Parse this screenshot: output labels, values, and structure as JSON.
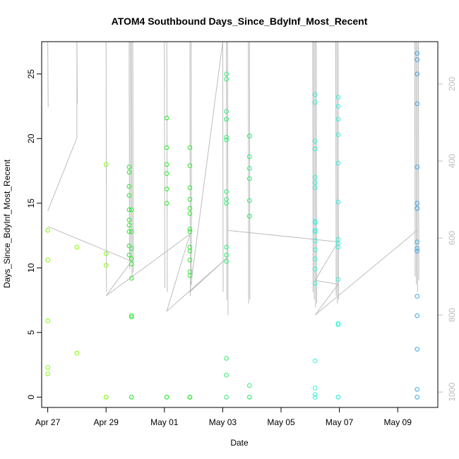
{
  "chart_data": {
    "type": "scatter",
    "title": "ATOM4 Southbound Days_Since_BdyInf_Most_Recent",
    "xlabel": "Date",
    "ylabel": "Days_Since_BdyInf_Most_Recent",
    "x_axis": {
      "type": "date",
      "range": [
        "2023-04-26T19:00",
        "2023-05-10T09:00"
      ],
      "ticks": [
        {
          "date": "2023-04-27",
          "label": "Apr 27"
        },
        {
          "date": "2023-04-29",
          "label": "Apr 29"
        },
        {
          "date": "2023-05-01",
          "label": "May 01"
        },
        {
          "date": "2023-05-03",
          "label": "May 03"
        },
        {
          "date": "2023-05-05",
          "label": "May 05"
        },
        {
          "date": "2023-05-07",
          "label": "May 07"
        },
        {
          "date": "2023-05-09",
          "label": "May 09"
        }
      ]
    },
    "y_left": {
      "range": [
        -0.8,
        27.5
      ],
      "ticks": [
        0,
        5,
        10,
        15,
        20,
        25
      ]
    },
    "y_right": {
      "range": [
        1040,
        90
      ],
      "ticks": [
        200,
        400,
        600,
        800,
        1000
      ],
      "color": "#bdbdbd"
    },
    "grid": false,
    "legend": "none",
    "line_color": "#bdbdbd",
    "series": [
      {
        "color": "#7fff00",
        "points": [
          [
            "2023-04-27T00:00",
            12.9
          ],
          [
            "2023-04-27T00:00",
            10.6
          ],
          [
            "2023-04-27T00:00",
            5.9
          ],
          [
            "2023-04-27T00:00",
            2.3
          ],
          [
            "2023-04-27T00:00",
            1.8
          ],
          [
            "2023-04-28T00:00",
            11.6
          ],
          [
            "2023-04-28T00:00",
            3.4
          ],
          [
            "2023-04-29T00:00",
            18.0
          ],
          [
            "2023-04-29T00:00",
            11.1
          ],
          [
            "2023-04-29T00:00",
            10.2
          ],
          [
            "2023-04-29T00:00",
            0.0
          ],
          [
            "2023-04-29T00:00",
            0.0
          ]
        ]
      },
      {
        "color": "#2ee82e",
        "points": [
          [
            "2023-04-29T19:00",
            17.8
          ],
          [
            "2023-04-29T19:00",
            17.4
          ],
          [
            "2023-04-29T19:00",
            16.3
          ],
          [
            "2023-04-29T19:00",
            15.6
          ],
          [
            "2023-04-29T19:00",
            14.5
          ],
          [
            "2023-04-29T19:00",
            13.7
          ],
          [
            "2023-04-29T19:00",
            13.3
          ],
          [
            "2023-04-29T19:00",
            12.8
          ],
          [
            "2023-04-29T19:00",
            11.7
          ],
          [
            "2023-04-29T19:00",
            11.0
          ],
          [
            "2023-04-29T21:00",
            14.5
          ],
          [
            "2023-04-29T21:00",
            12.8
          ],
          [
            "2023-04-29T21:00",
            11.5
          ],
          [
            "2023-04-29T21:00",
            10.7
          ],
          [
            "2023-04-29T21:00",
            10.3
          ],
          [
            "2023-04-29T21:00",
            9.2
          ],
          [
            "2023-04-29T21:00",
            6.3
          ],
          [
            "2023-04-29T21:00",
            6.2
          ],
          [
            "2023-04-29T21:00",
            0.0
          ],
          [
            "2023-04-29T21:00",
            0.0
          ],
          [
            "2023-05-01T02:00",
            21.6
          ],
          [
            "2023-05-01T02:00",
            19.3
          ],
          [
            "2023-05-01T02:00",
            18.0
          ],
          [
            "2023-05-01T02:00",
            17.3
          ],
          [
            "2023-05-01T02:00",
            16.1
          ],
          [
            "2023-05-01T02:00",
            15.0
          ],
          [
            "2023-05-01T02:00",
            0.0
          ],
          [
            "2023-05-01T02:00",
            0.0
          ],
          [
            "2023-05-01T21:00",
            19.3
          ],
          [
            "2023-05-01T21:00",
            17.9
          ],
          [
            "2023-05-01T21:00",
            16.2
          ],
          [
            "2023-05-01T21:00",
            15.3
          ],
          [
            "2023-05-01T21:00",
            14.6
          ],
          [
            "2023-05-01T21:00",
            14.2
          ],
          [
            "2023-05-01T21:00",
            13.0
          ],
          [
            "2023-05-01T21:00",
            12.8
          ],
          [
            "2023-05-01T21:00",
            11.6
          ],
          [
            "2023-05-01T21:00",
            11.3
          ],
          [
            "2023-05-01T21:00",
            10.6
          ],
          [
            "2023-05-01T21:00",
            9.7
          ],
          [
            "2023-05-01T21:00",
            9.4
          ],
          [
            "2023-05-01T21:00",
            0.0
          ],
          [
            "2023-05-01T21:00",
            0.0
          ],
          [
            "2023-05-01T21:00",
            0.0
          ],
          [
            "2023-05-01T21:00",
            0.0
          ]
        ]
      },
      {
        "color": "#32eb74",
        "points": [
          [
            "2023-05-03T03:00",
            25.0
          ],
          [
            "2023-05-03T03:00",
            24.6
          ],
          [
            "2023-05-03T03:00",
            22.1
          ],
          [
            "2023-05-03T03:00",
            21.5
          ],
          [
            "2023-05-03T03:00",
            21.5
          ],
          [
            "2023-05-03T03:00",
            20.1
          ],
          [
            "2023-05-03T03:00",
            19.9
          ],
          [
            "2023-05-03T03:00",
            15.9
          ],
          [
            "2023-05-03T03:00",
            15.3
          ],
          [
            "2023-05-03T03:00",
            15.0
          ],
          [
            "2023-05-03T03:00",
            11.6
          ],
          [
            "2023-05-03T03:00",
            11.0
          ],
          [
            "2023-05-03T03:00",
            10.5
          ],
          [
            "2023-05-03T03:00",
            3.0
          ],
          [
            "2023-05-03T03:00",
            1.7
          ],
          [
            "2023-05-03T03:00",
            0.0
          ],
          [
            "2023-05-03T22:00",
            20.2
          ],
          [
            "2023-05-03T22:00",
            20.2
          ],
          [
            "2023-05-03T22:00",
            18.6
          ],
          [
            "2023-05-03T22:00",
            17.7
          ],
          [
            "2023-05-03T22:00",
            16.9
          ],
          [
            "2023-05-03T22:00",
            15.2
          ],
          [
            "2023-05-03T22:00",
            14.0
          ],
          [
            "2023-05-03T22:00",
            14.0
          ],
          [
            "2023-05-03T22:00",
            0.9
          ],
          [
            "2023-05-03T22:00",
            0.0
          ],
          [
            "2023-05-03T22:00",
            0.0
          ]
        ]
      },
      {
        "color": "#36f0d8",
        "points": [
          [
            "2023-05-06T04:00",
            23.4
          ],
          [
            "2023-05-06T04:00",
            22.8
          ],
          [
            "2023-05-06T04:00",
            19.8
          ],
          [
            "2023-05-06T04:00",
            19.2
          ],
          [
            "2023-05-06T04:00",
            17.0
          ],
          [
            "2023-05-06T04:00",
            16.6
          ],
          [
            "2023-05-06T04:00",
            16.2
          ],
          [
            "2023-05-06T04:00",
            13.6
          ],
          [
            "2023-05-06T04:00",
            13.5
          ],
          [
            "2023-05-06T04:00",
            12.9
          ],
          [
            "2023-05-06T04:00",
            12.8
          ],
          [
            "2023-05-06T04:00",
            12.1
          ],
          [
            "2023-05-06T04:00",
            11.4
          ],
          [
            "2023-05-06T04:00",
            10.7
          ],
          [
            "2023-05-06T04:00",
            9.9
          ],
          [
            "2023-05-06T04:00",
            8.8
          ],
          [
            "2023-05-06T04:00",
            2.8
          ],
          [
            "2023-05-06T04:00",
            0.7
          ],
          [
            "2023-05-06T04:00",
            0.2
          ],
          [
            "2023-05-06T04:00",
            0.0
          ],
          [
            "2023-05-06T23:00",
            23.2
          ],
          [
            "2023-05-06T23:00",
            22.5
          ],
          [
            "2023-05-06T23:00",
            21.5
          ],
          [
            "2023-05-06T23:00",
            20.3
          ],
          [
            "2023-05-06T23:00",
            18.1
          ],
          [
            "2023-05-06T23:00",
            15.1
          ],
          [
            "2023-05-06T23:00",
            12.2
          ],
          [
            "2023-05-06T23:00",
            11.9
          ],
          [
            "2023-05-06T23:00",
            11.6
          ],
          [
            "2023-05-06T23:00",
            9.1
          ],
          [
            "2023-05-06T23:00",
            5.7
          ],
          [
            "2023-05-06T23:00",
            5.6
          ],
          [
            "2023-05-06T23:00",
            0.0
          ],
          [
            "2023-05-06T23:00",
            0.0
          ]
        ]
      },
      {
        "color": "#3aa8e8",
        "points": [
          [
            "2023-05-09T16:00",
            26.6
          ],
          [
            "2023-05-09T16:00",
            26.1
          ],
          [
            "2023-05-09T16:00",
            25.0
          ],
          [
            "2023-05-09T16:00",
            22.7
          ],
          [
            "2023-05-09T16:00",
            17.8
          ],
          [
            "2023-05-09T16:00",
            15.0
          ],
          [
            "2023-05-09T16:00",
            14.6
          ],
          [
            "2023-05-09T16:00",
            14.6
          ],
          [
            "2023-05-09T16:00",
            12.0
          ],
          [
            "2023-05-09T16:00",
            11.5
          ],
          [
            "2023-05-09T16:00",
            11.3
          ],
          [
            "2023-05-09T16:00",
            7.8
          ],
          [
            "2023-05-09T16:00",
            6.3
          ],
          [
            "2023-05-09T16:00",
            3.7
          ],
          [
            "2023-05-09T16:00",
            0.6
          ],
          [
            "2023-05-09T16:00",
            0.0
          ]
        ]
      }
    ]
  }
}
